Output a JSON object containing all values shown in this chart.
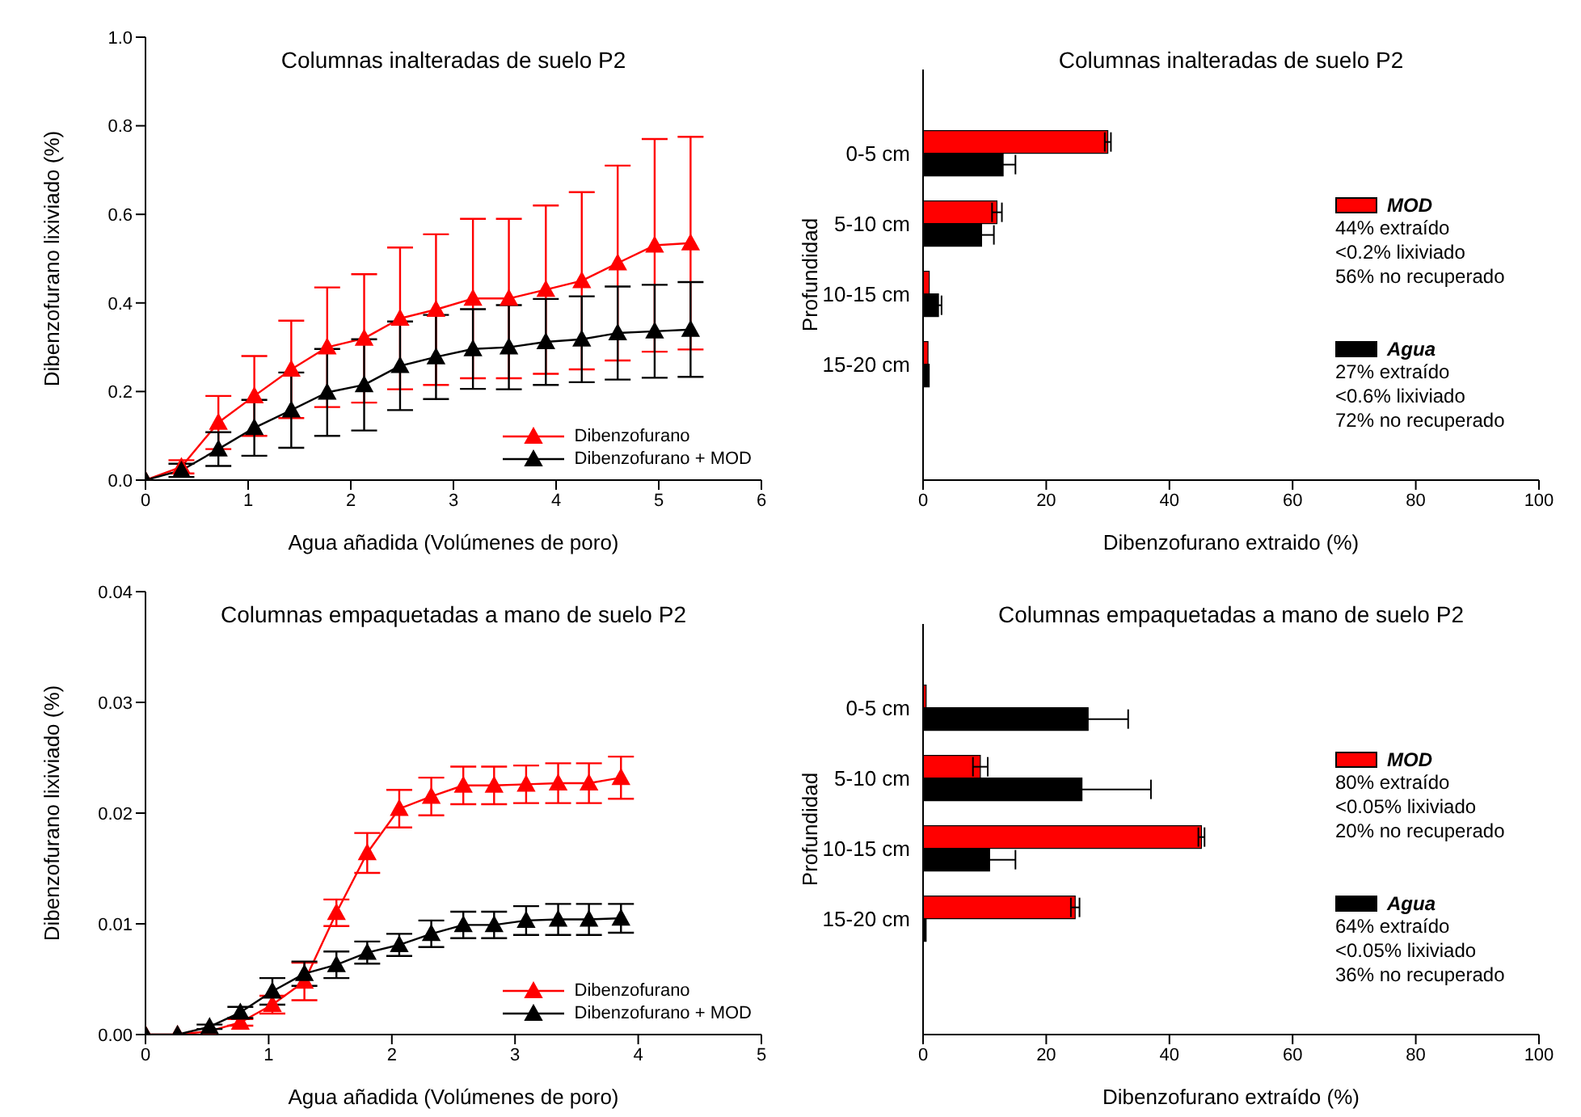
{
  "chart_data": [
    {
      "type": "line",
      "title": "Columnas inalteradas de suelo P2",
      "xlabel": "Agua añadida (Volúmenes de poro)",
      "ylabel": "Dibenzofurano lixiviado (%)",
      "marker": "triangle",
      "legend": "bottom right",
      "grid": false,
      "x": [
        0,
        0.35,
        0.71,
        1.06,
        1.42,
        1.77,
        2.13,
        2.48,
        2.83,
        3.19,
        3.54,
        3.9,
        4.25,
        4.6,
        4.96,
        5.31
      ],
      "xlim": [
        0,
        6
      ],
      "xticks": [
        0,
        1,
        2,
        3,
        4,
        5,
        6
      ],
      "ylim": [
        0,
        1
      ],
      "yticks": [
        {
          "value": 0,
          "label": "0.0"
        },
        {
          "value": 0.2,
          "label": "0.2"
        },
        {
          "value": 0.4,
          "label": "0.4"
        },
        {
          "value": 0.6,
          "label": "0.6"
        },
        {
          "value": 0.8,
          "label": "0.8"
        },
        {
          "value": 1,
          "label": "1.0"
        }
      ],
      "series": [
        {
          "name": "Dibenzofurano",
          "color": "#ff0000",
          "values": [
            0,
            0.03,
            0.13,
            0.19,
            0.25,
            0.3,
            0.32,
            0.365,
            0.385,
            0.41,
            0.41,
            0.43,
            0.45,
            0.49,
            0.53,
            0.535
          ],
          "errors": [
            0,
            0.015,
            0.06,
            0.09,
            0.11,
            0.135,
            0.145,
            0.16,
            0.17,
            0.18,
            0.18,
            0.19,
            0.2,
            0.22,
            0.24,
            0.24
          ]
        },
        {
          "name": "Dibenzofurano + MOD",
          "color": "#000000",
          "values": [
            0,
            0.022,
            0.07,
            0.118,
            0.158,
            0.198,
            0.215,
            0.258,
            0.278,
            0.296,
            0.3,
            0.312,
            0.318,
            0.332,
            0.336,
            0.34
          ],
          "errors": [
            0,
            0.015,
            0.038,
            0.063,
            0.085,
            0.098,
            0.103,
            0.1,
            0.095,
            0.09,
            0.095,
            0.097,
            0.097,
            0.105,
            0.105,
            0.107
          ]
        }
      ]
    },
    {
      "type": "bar",
      "orientation": "horizontal",
      "title": "Columnas inalteradas de suelo P2",
      "xlabel": "Dibenzofurano extraido (%)",
      "ylabel": "Profundidad",
      "legend": "right",
      "grid": false,
      "categories": [
        "0-5 cm",
        "5-10 cm",
        "10-15 cm",
        "15-20 cm"
      ],
      "xlim": [
        0,
        100
      ],
      "xticks": [
        0,
        20,
        40,
        60,
        80,
        100
      ],
      "series": [
        {
          "name": "MOD",
          "color": "#ff0000",
          "values": [
            30,
            12,
            1,
            0.8
          ],
          "errors": [
            0.5,
            0.8,
            null,
            null
          ]
        },
        {
          "name": "Agua",
          "color": "#000000",
          "values": [
            13,
            9.5,
            2.5,
            1
          ],
          "errors": [
            2,
            2,
            0.5,
            null
          ]
        }
      ],
      "annotations": [
        "44% extraído",
        "<0.2% lixiviado",
        "56% no recuperado",
        "27% extraído",
        "<0.6% lixiviado",
        "72% no recuperado"
      ]
    },
    {
      "type": "line",
      "title": "Columnas empaquetadas a mano de suelo P2",
      "xlabel": "Agua añadida (Volúmenes de poro)",
      "ylabel": "Dibenzofurano lixiviado (%)",
      "marker": "triangle",
      "legend": "bottom right",
      "grid": false,
      "x": [
        0,
        0.26,
        0.52,
        0.77,
        1.03,
        1.29,
        1.55,
        1.8,
        2.06,
        2.32,
        2.58,
        2.83,
        3.09,
        3.35,
        3.6,
        3.86
      ],
      "xlim": [
        0,
        5
      ],
      "xticks": [
        0,
        1,
        2,
        3,
        4,
        5
      ],
      "ylim": [
        0,
        0.04
      ],
      "yticks": [
        {
          "value": 0,
          "label": "0.00"
        },
        {
          "value": 0.01,
          "label": "0.01"
        },
        {
          "value": 0.02,
          "label": "0.02"
        },
        {
          "value": 0.03,
          "label": "0.03"
        },
        {
          "value": 0.04,
          "label": "0.04"
        }
      ],
      "series": [
        {
          "name": "Dibenzofurano",
          "color": "#ff0000",
          "values": [
            0,
            0,
            0.0003,
            0.0011,
            0.0027,
            0.0048,
            0.011,
            0.0164,
            0.0204,
            0.0215,
            0.0225,
            0.0225,
            0.0226,
            0.0227,
            0.0227,
            0.0232
          ],
          "errors": [
            0,
            0,
            null,
            0.0003,
            0.0008,
            0.0017,
            0.0012,
            0.0018,
            0.0017,
            0.0017,
            0.0017,
            0.0017,
            0.0017,
            0.0018,
            0.0018,
            0.0019
          ]
        },
        {
          "name": "Dibenzofurano + MOD",
          "color": "#000000",
          "values": [
            0,
            0,
            0.0007,
            0.002,
            0.0039,
            0.0055,
            0.0063,
            0.0074,
            0.0081,
            0.0091,
            0.0099,
            0.0099,
            0.0103,
            0.0104,
            0.0104,
            0.0105
          ],
          "errors": [
            0,
            0,
            0.0002,
            0.0005,
            0.0012,
            0.0011,
            0.0012,
            0.001,
            0.001,
            0.0012,
            0.0012,
            0.0012,
            0.0013,
            0.0014,
            0.0014,
            0.0013
          ]
        }
      ]
    },
    {
      "type": "bar",
      "orientation": "horizontal",
      "title": "Columnas empaquetadas a mano de suelo P2",
      "xlabel": "Dibenzofurano extraído (%)",
      "ylabel": "Profundidad",
      "legend": "right",
      "grid": false,
      "categories": [
        "0-5 cm",
        "5-10 cm",
        "10-15 cm",
        "15-20 cm"
      ],
      "xlim": [
        0,
        100
      ],
      "xticks": [
        0,
        20,
        40,
        60,
        80,
        100
      ],
      "series": [
        {
          "name": "MOD",
          "color": "#ff0000",
          "values": [
            0.5,
            9.3,
            45.2,
            24.7
          ],
          "errors": [
            null,
            1.2,
            0.5,
            0.7
          ]
        },
        {
          "name": "Agua",
          "color": "#000000",
          "values": [
            26.8,
            25.8,
            10.8,
            0.5
          ],
          "errors": [
            6.5,
            11.2,
            4.2,
            null
          ]
        }
      ],
      "annotations": [
        "80% extraído",
        "<0.05% lixiviado",
        "20% no recuperado",
        "64% extraído",
        "<0.05% lixiviado",
        "36% no recuperado"
      ]
    }
  ]
}
